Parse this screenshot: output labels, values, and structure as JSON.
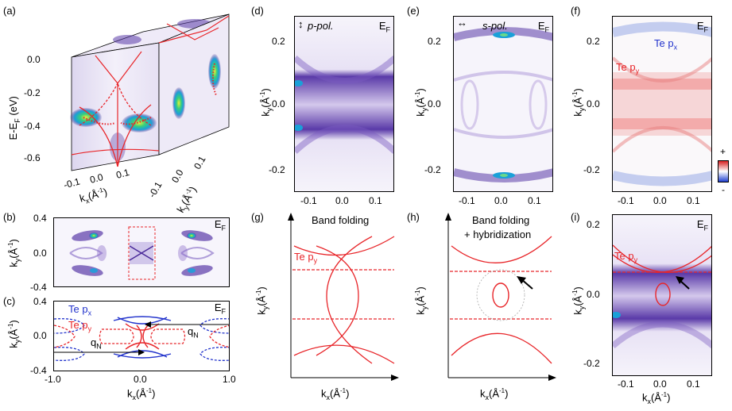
{
  "panels": {
    "a": {
      "tag": "(a)",
      "ylabel": "E-E_F (eV)",
      "yticks": [
        "0.0",
        "-0.2",
        "-0.4",
        "-0.6"
      ],
      "kx_ticks": [
        "-0.1",
        "0.0",
        "0.1"
      ],
      "ky_ticks": [
        "-0.1",
        "0.0",
        "0.1"
      ],
      "kx_label": "k_x(Å⁻¹)",
      "ky_label": "k_y(Å⁻¹)"
    },
    "b": {
      "tag": "(b)",
      "ylabel": "k_y(Å⁻¹)",
      "yticks": [
        "0.4",
        "0.0",
        "-0.4"
      ],
      "ef": "E_F"
    },
    "c": {
      "tag": "(c)",
      "ylabel": "k_y(Å⁻¹)",
      "yticks": [
        "0.4",
        "0.0",
        "-0.4"
      ],
      "xticks": [
        "-1.0",
        "0.0",
        "1.0"
      ],
      "xlabel": "k_x(Å⁻¹)",
      "ef": "E_F",
      "te_px": "Te p_x",
      "te_py": "Te p_y",
      "qn": "q_N"
    },
    "d": {
      "tag": "(d)",
      "ylabel": "k_y(Å⁻¹)",
      "yticks": [
        "0.2",
        "0.0",
        "-0.2"
      ],
      "xticks": [
        "-0.1",
        "0.0",
        "0.1"
      ],
      "pol": "p-pol.",
      "ef": "E_F"
    },
    "e": {
      "tag": "(e)",
      "ylabel": "k_y(Å⁻¹)",
      "yticks": [
        "0.2",
        "0.0",
        "-0.2"
      ],
      "xticks": [
        "-0.1",
        "0.0",
        "0.1"
      ],
      "pol": "s-pol.",
      "ef": "E_F"
    },
    "f": {
      "tag": "(f)",
      "ylabel": "k_y(Å⁻¹)",
      "yticks": [
        "0.2",
        "0.0",
        "-0.2"
      ],
      "xticks": [
        "-0.1",
        "0.0",
        "0.1"
      ],
      "ef": "E_F",
      "te_px": "Te p_x",
      "te_py": "Te p_y",
      "plus": "+",
      "minus": "-"
    },
    "g": {
      "tag": "(g)",
      "title": "Band folding",
      "te_py": "Te p_y",
      "ylabel": "k_y(Å⁻¹)",
      "xlabel": "k_x(Å⁻¹)"
    },
    "h": {
      "tag": "(h)",
      "title1": "Band folding",
      "title2": "+ hybridization",
      "ylabel": "k_y(Å⁻¹)",
      "xlabel": "k_x(Å⁻¹)"
    },
    "i": {
      "tag": "(i)",
      "ylabel": "k_y(Å⁻¹)",
      "yticks": [
        "0.2",
        "0.0",
        "-0.2"
      ],
      "xticks": [
        "-0.1",
        "0.0",
        "0.1"
      ],
      "xlabel": "k_x(Å⁻¹)",
      "ef": "E_F",
      "te_py": "Te p_y"
    }
  },
  "colors": {
    "band": "#e8262a",
    "px": "#2233cc",
    "purple": "#3a1a8a"
  }
}
